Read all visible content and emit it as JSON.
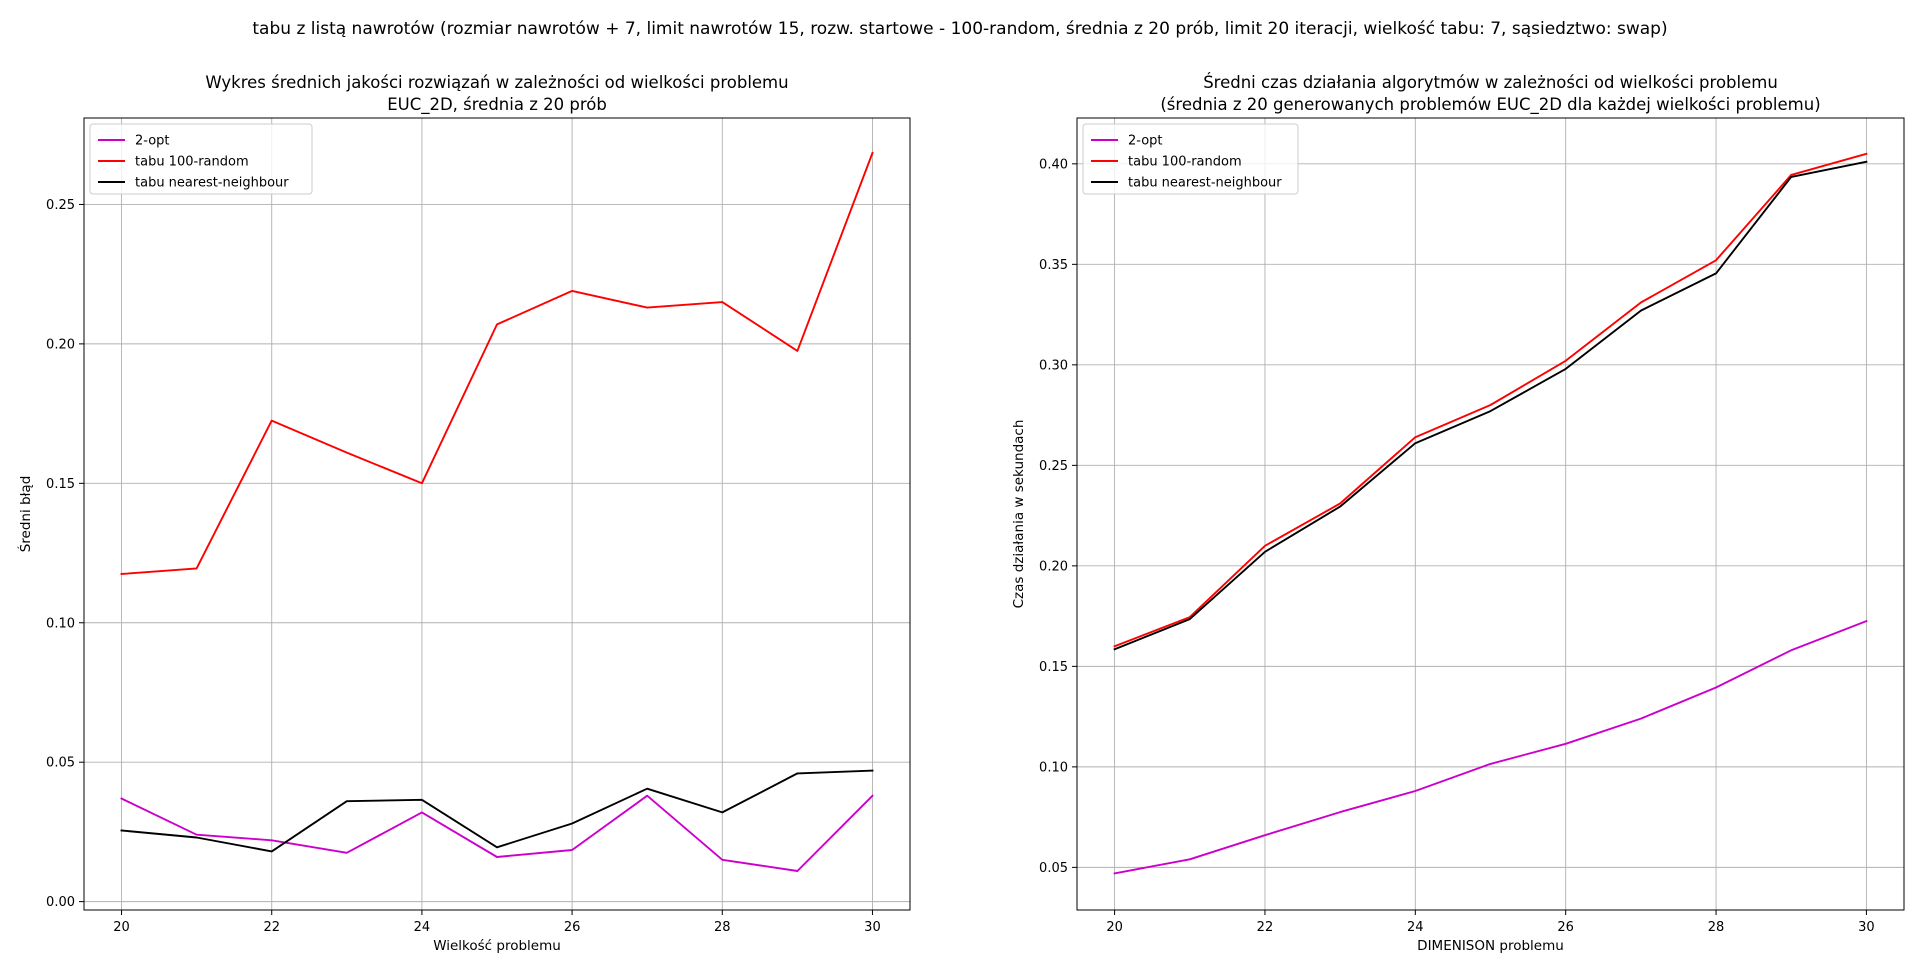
{
  "figure": {
    "suptitle": "tabu z listą nawrotów (rozmiar nawrotów + 7, limit nawrotów 15, rozw. startowe - 100-random, średnia z 20 prób, limit 20 iteracji, wielkość tabu: 7, sąsiedztwo: swap)"
  },
  "chart_data": [
    {
      "type": "line",
      "title_line1": "Wykres średnich jakości rozwiązań w zależności od wielkości problemu",
      "title_line2": "EUC_2D, średnia z 20 prób",
      "xlabel": "Wielkość problemu",
      "ylabel": "Średni błąd",
      "xlim": [
        19.5,
        30.5
      ],
      "ylim": [
        -0.003,
        0.281
      ],
      "xticks": [
        20,
        22,
        24,
        26,
        28,
        30
      ],
      "yticks": [
        0.0,
        0.05,
        0.1,
        0.15,
        0.2,
        0.25
      ],
      "ytick_labels": [
        "0.00",
        "0.05",
        "0.10",
        "0.15",
        "0.20",
        "0.25"
      ],
      "grid": true,
      "legend_position": "upper left",
      "x": [
        20,
        21,
        22,
        23,
        24,
        25,
        26,
        27,
        28,
        29,
        30
      ],
      "series": [
        {
          "name": "2-opt",
          "color": "#cc00cc",
          "values": [
            0.037,
            0.024,
            0.022,
            0.0175,
            0.032,
            0.016,
            0.0185,
            0.038,
            0.015,
            0.011,
            0.038
          ]
        },
        {
          "name": "tabu 100-random",
          "color": "#ff0000",
          "values": [
            0.1175,
            0.1195,
            0.1725,
            0.161,
            0.15,
            0.207,
            0.219,
            0.213,
            0.215,
            0.1975,
            0.2685
          ]
        },
        {
          "name": "tabu nearest-neighbour",
          "color": "#000000",
          "values": [
            0.0255,
            0.023,
            0.018,
            0.036,
            0.0365,
            0.0195,
            0.028,
            0.0405,
            0.032,
            0.046,
            0.047
          ]
        }
      ]
    },
    {
      "type": "line",
      "title_line1": "Średni czas działania algorytmów w zależności od wielkości problemu",
      "title_line2": "(średnia z 20 generowanych problemów EUC_2D dla każdej wielkości problemu)",
      "xlabel": "DIMENISON problemu",
      "ylabel": "Czas działania w sekundach",
      "xlim": [
        19.5,
        30.5
      ],
      "ylim": [
        0.0288,
        0.4228
      ],
      "xticks": [
        20,
        22,
        24,
        26,
        28,
        30
      ],
      "yticks": [
        0.05,
        0.1,
        0.15,
        0.2,
        0.25,
        0.3,
        0.35,
        0.4
      ],
      "ytick_labels": [
        "0.05",
        "0.10",
        "0.15",
        "0.20",
        "0.25",
        "0.30",
        "0.35",
        "0.40"
      ],
      "grid": true,
      "legend_position": "upper left",
      "x": [
        20,
        21,
        22,
        23,
        24,
        25,
        26,
        27,
        28,
        29,
        30
      ],
      "series": [
        {
          "name": "2-opt",
          "color": "#cc00cc",
          "values": [
            0.047,
            0.054,
            0.066,
            0.0775,
            0.088,
            0.1015,
            0.1115,
            0.124,
            0.1395,
            0.158,
            0.1725
          ]
        },
        {
          "name": "tabu 100-random",
          "color": "#ff0000",
          "values": [
            0.16,
            0.1745,
            0.21,
            0.231,
            0.264,
            0.28,
            0.302,
            0.331,
            0.352,
            0.3945,
            0.405
          ]
        },
        {
          "name": "tabu nearest-neighbour",
          "color": "#000000",
          "values": [
            0.1585,
            0.1735,
            0.207,
            0.2295,
            0.261,
            0.277,
            0.298,
            0.327,
            0.3455,
            0.3935,
            0.401
          ]
        }
      ]
    }
  ]
}
